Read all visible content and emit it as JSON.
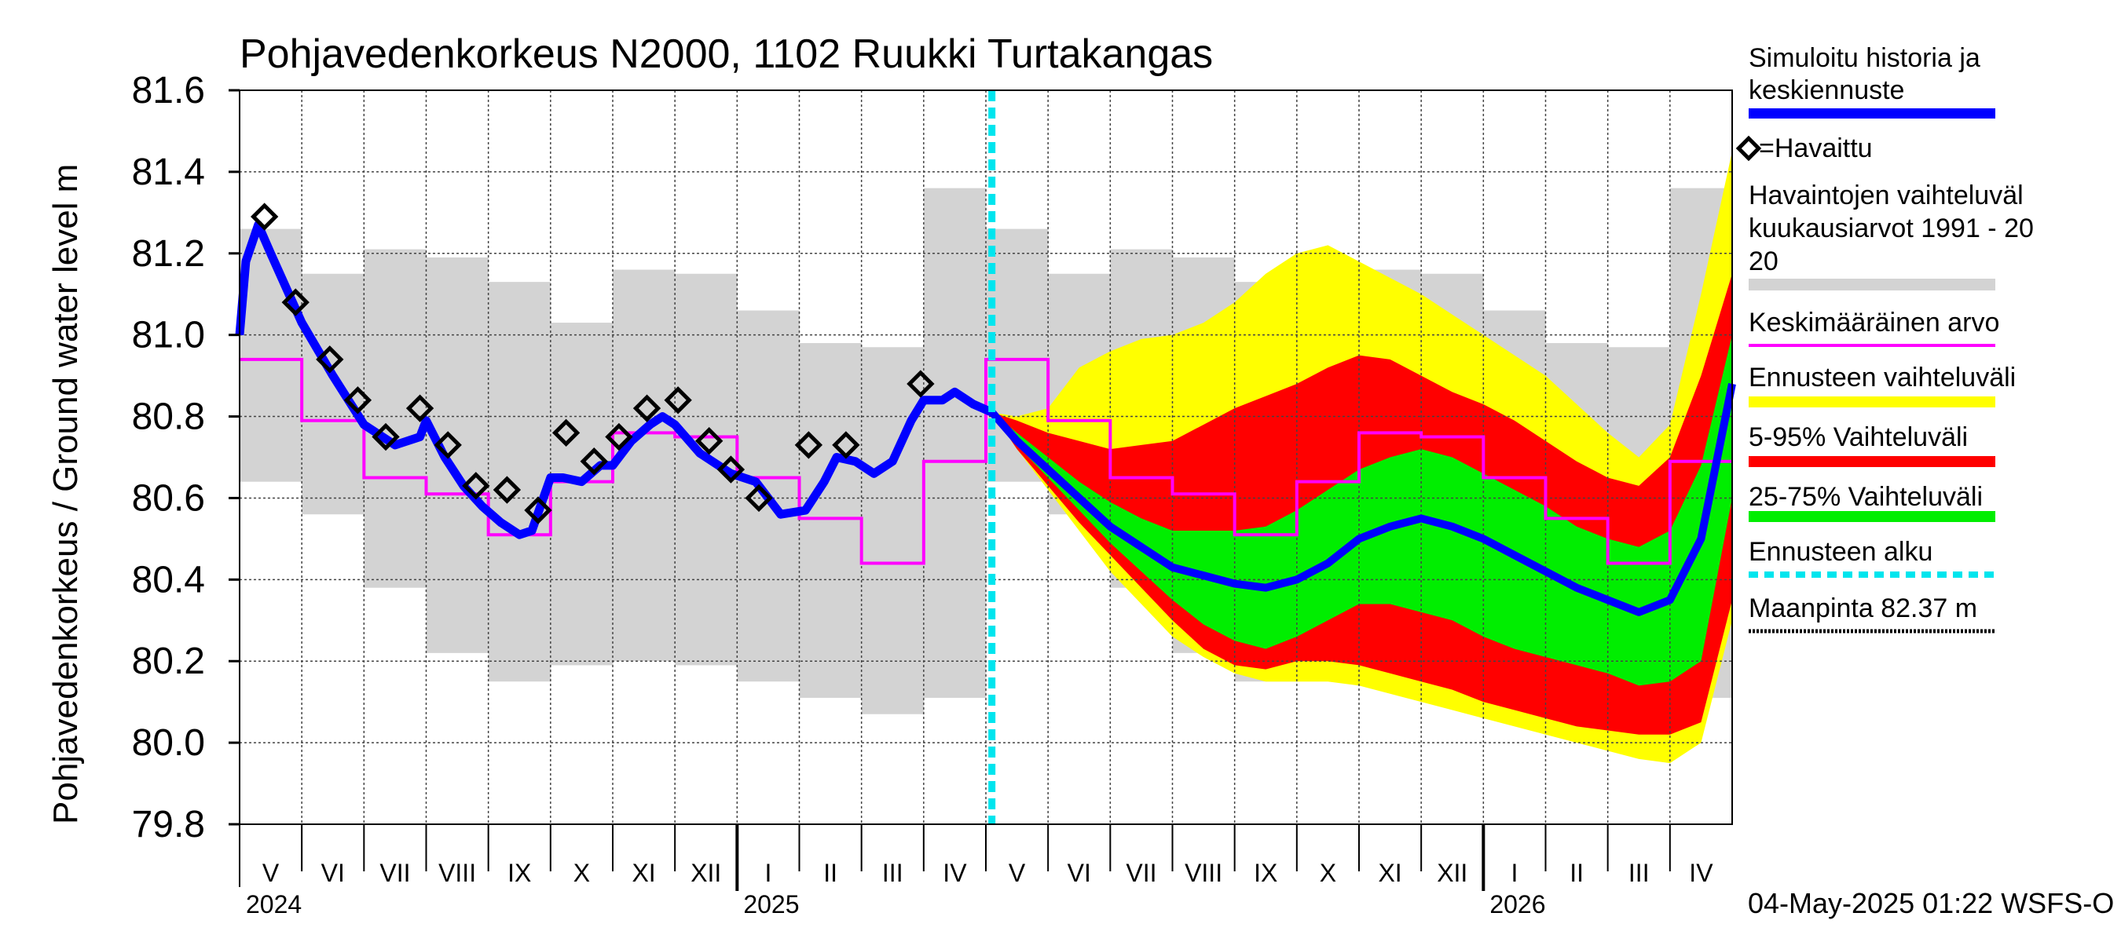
{
  "chart_data": {
    "type": "line",
    "title": "Pohjavedenkorkeus N2000, 1102 Ruukki Turtakangas",
    "ylabel": "Pohjavedenkorkeus / Ground water level   m",
    "ylim": [
      79.8,
      81.6
    ],
    "yticks": [
      "79.8",
      "80.0",
      "80.2",
      "80.4",
      "80.6",
      "80.8",
      "81.0",
      "81.2",
      "81.4",
      "81.6"
    ],
    "x_range": [
      "2024-05-01",
      "2026-05-01"
    ],
    "month_labels": [
      "V",
      "VI",
      "VII",
      "VIII",
      "IX",
      "X",
      "XI",
      "XII",
      "I",
      "II",
      "III",
      "IV",
      "V",
      "VI",
      "VII",
      "VIII",
      "IX",
      "X",
      "XI",
      "XII",
      "I",
      "II",
      "III",
      "IV"
    ],
    "year_labels": [
      "2024",
      "2025",
      "2026"
    ],
    "forecast_start": "2025-05-04",
    "timestamp": "04-May-2025 01:22 WSFS-O",
    "grid": true,
    "legend_position": "right",
    "legend": {
      "simulated": "Simuloitu historia ja keskiennuste",
      "observed": "=Havaittu",
      "range_obs": "Havaintojen vaihteluväli kuukausiarvot 1991 - 2020",
      "mean": "Keskimääräinen arvo",
      "forecast_range": "Ennusteen vaihteluväli",
      "p5_95": "5-95% Vaihteluväli",
      "p25_75": "25-75% Vaihteluväli",
      "forecast_start": "Ennusteen alku",
      "ground": "Maanpinta 82.37 m"
    },
    "colors": {
      "simulated": "#0000ff",
      "observed": "#000000",
      "range_obs": "#d3d3d3",
      "mean": "#ff00ff",
      "forecast_range": "#ffff00",
      "p5_95": "#ff0000",
      "p25_75": "#00ee00",
      "forecast_start": "#00e5ee",
      "ground": "#000000"
    },
    "monthly_stats": {
      "months": [
        0,
        1,
        2,
        3,
        4,
        5,
        6,
        7,
        8,
        9,
        10,
        11,
        12,
        13,
        14,
        15,
        16,
        17,
        18,
        19,
        20,
        21,
        22,
        23
      ],
      "min": [
        80.64,
        80.56,
        80.38,
        80.22,
        80.15,
        80.19,
        80.2,
        80.19,
        80.15,
        80.11,
        80.07,
        80.11,
        80.64,
        80.56,
        80.38,
        80.22,
        80.15,
        80.19,
        80.2,
        80.19,
        80.15,
        80.11,
        80.07,
        80.11
      ],
      "max": [
        81.26,
        81.15,
        81.21,
        81.19,
        81.13,
        81.03,
        81.16,
        81.15,
        81.06,
        80.98,
        80.97,
        81.36,
        81.26,
        81.15,
        81.21,
        81.19,
        81.13,
        81.03,
        81.16,
        81.15,
        81.06,
        80.98,
        80.97,
        81.36
      ],
      "mean": [
        80.94,
        80.79,
        80.65,
        80.61,
        80.51,
        80.64,
        80.76,
        80.75,
        80.65,
        80.55,
        80.44,
        80.69,
        80.94,
        80.79,
        80.65,
        80.61,
        80.51,
        80.64,
        80.76,
        80.75,
        80.65,
        80.55,
        80.44,
        80.69
      ]
    },
    "simulated_history": {
      "x": [
        0,
        0.1,
        0.3,
        0.5,
        1.0,
        1.5,
        2.0,
        2.5,
        2.9,
        3.0,
        3.1,
        3.3,
        3.6,
        3.9,
        4.2,
        4.5,
        4.7,
        5.0,
        5.2,
        5.5,
        5.8,
        6.0,
        6.3,
        6.6,
        6.8,
        7.0,
        7.4,
        7.9,
        8.3,
        8.7,
        9.1,
        9.4,
        9.6,
        9.9,
        10.2,
        10.5,
        10.8,
        11.0,
        11.3,
        11.5,
        11.8,
        12.1
      ],
      "y": [
        81.0,
        81.18,
        81.27,
        81.2,
        81.03,
        80.9,
        80.78,
        80.73,
        80.75,
        80.79,
        80.76,
        80.7,
        80.63,
        80.58,
        80.54,
        80.51,
        80.52,
        80.65,
        80.65,
        80.64,
        80.68,
        80.68,
        80.74,
        80.78,
        80.8,
        80.78,
        80.71,
        80.66,
        80.64,
        80.56,
        80.57,
        80.64,
        80.7,
        80.69,
        80.66,
        80.69,
        80.79,
        80.84,
        80.84,
        80.86,
        80.83,
        80.81
      ]
    },
    "observations": {
      "x": [
        0.4,
        0.9,
        1.45,
        1.9,
        2.35,
        2.9,
        3.35,
        3.8,
        4.3,
        4.8,
        5.25,
        5.7,
        6.1,
        6.55,
        7.05,
        7.55,
        7.9,
        8.35,
        9.15,
        9.75,
        10.95
      ],
      "y": [
        81.29,
        81.08,
        80.94,
        80.84,
        80.75,
        80.82,
        80.73,
        80.63,
        80.62,
        80.57,
        80.76,
        80.69,
        80.75,
        80.82,
        80.84,
        80.74,
        80.67,
        80.6,
        80.73,
        80.73,
        80.88
      ]
    },
    "forecast": {
      "x": [
        12.1,
        12.5,
        13.0,
        13.5,
        14.0,
        14.5,
        15.0,
        15.5,
        16.0,
        16.5,
        17.0,
        17.5,
        18.0,
        18.5,
        19.0,
        19.5,
        20.0,
        20.5,
        21.0,
        21.5,
        22.0,
        22.5,
        23.0,
        23.5,
        24.0
      ],
      "median": [
        80.81,
        80.74,
        80.67,
        80.6,
        80.53,
        80.48,
        80.43,
        80.41,
        80.39,
        80.38,
        80.4,
        80.44,
        80.5,
        80.53,
        80.55,
        80.53,
        80.5,
        80.46,
        80.42,
        80.38,
        80.35,
        80.32,
        80.35,
        80.5,
        80.88
      ],
      "p25": [
        80.81,
        80.73,
        80.65,
        80.57,
        80.49,
        80.42,
        80.35,
        80.29,
        80.25,
        80.23,
        80.26,
        80.3,
        80.34,
        80.34,
        80.32,
        80.3,
        80.26,
        80.23,
        80.21,
        80.19,
        80.17,
        80.14,
        80.15,
        80.2,
        80.6
      ],
      "p75": [
        80.81,
        80.76,
        80.7,
        80.64,
        80.59,
        80.55,
        80.52,
        80.52,
        80.52,
        80.53,
        80.57,
        80.62,
        80.67,
        80.7,
        80.72,
        80.7,
        80.66,
        80.62,
        80.58,
        80.53,
        80.5,
        80.48,
        80.52,
        80.68,
        81.0
      ],
      "p5": [
        80.81,
        80.72,
        80.63,
        80.54,
        80.46,
        80.38,
        80.3,
        80.23,
        80.19,
        80.18,
        80.2,
        80.2,
        80.19,
        80.17,
        80.15,
        80.13,
        80.1,
        80.08,
        80.06,
        80.04,
        80.03,
        80.02,
        80.02,
        80.05,
        80.35
      ],
      "p95": [
        80.81,
        80.79,
        80.76,
        80.74,
        80.72,
        80.73,
        80.74,
        80.78,
        80.82,
        80.85,
        80.88,
        80.92,
        80.95,
        80.94,
        80.9,
        80.86,
        80.83,
        80.79,
        80.74,
        80.69,
        80.65,
        80.63,
        80.7,
        80.9,
        81.15
      ],
      "min": [
        80.81,
        80.72,
        80.62,
        80.52,
        80.42,
        80.34,
        80.26,
        80.21,
        80.17,
        80.15,
        80.15,
        80.15,
        80.14,
        80.12,
        80.1,
        80.08,
        80.06,
        80.04,
        80.02,
        80.0,
        79.98,
        79.96,
        79.95,
        80.0,
        80.3
      ],
      "max": [
        80.81,
        80.8,
        80.82,
        80.92,
        80.96,
        80.99,
        81.0,
        81.03,
        81.08,
        81.15,
        81.2,
        81.22,
        81.18,
        81.14,
        81.1,
        81.05,
        81.0,
        80.95,
        80.9,
        80.83,
        80.76,
        80.7,
        80.78,
        81.1,
        81.45
      ]
    }
  }
}
